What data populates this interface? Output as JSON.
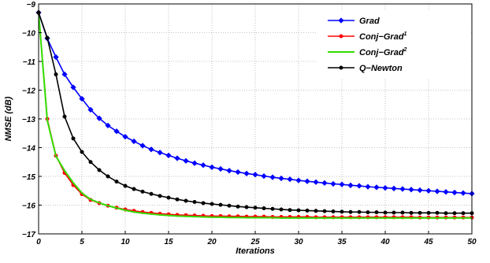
{
  "chart_data": {
    "type": "line",
    "title": "",
    "xlabel": "Iterations",
    "ylabel": "NMSE  (dB)",
    "xlim": [
      0,
      50
    ],
    "ylim": [
      -17,
      -9
    ],
    "grid": true,
    "legend_position": "top-right",
    "x_ticks": [
      "0",
      "5",
      "10",
      "15",
      "20",
      "25",
      "30",
      "35",
      "40",
      "45",
      "50"
    ],
    "y_ticks": [
      "−9",
      "−10",
      "−11",
      "−12",
      "−13",
      "−14",
      "−15",
      "−16",
      "−17"
    ],
    "x": [
      0,
      1,
      2,
      3,
      4,
      5,
      6,
      7,
      8,
      9,
      10,
      11,
      12,
      13,
      14,
      15,
      16,
      17,
      18,
      19,
      20,
      21,
      22,
      23,
      24,
      25,
      26,
      27,
      28,
      29,
      30,
      31,
      32,
      33,
      34,
      35,
      36,
      37,
      38,
      39,
      40,
      41,
      42,
      43,
      44,
      45,
      46,
      47,
      48,
      49,
      50
    ],
    "series": [
      {
        "name": "Grad",
        "name_main": "Grad",
        "name_sup": "",
        "color": "#0000ff",
        "marker": "diamond",
        "values": [
          -9.3,
          -10.2,
          -10.85,
          -11.45,
          -11.9,
          -12.3,
          -12.68,
          -12.98,
          -13.23,
          -13.43,
          -13.62,
          -13.78,
          -13.93,
          -14.06,
          -14.17,
          -14.27,
          -14.37,
          -14.46,
          -14.54,
          -14.61,
          -14.68,
          -14.74,
          -14.8,
          -14.85,
          -14.9,
          -14.94,
          -14.99,
          -15.03,
          -15.07,
          -15.1,
          -15.14,
          -15.17,
          -15.2,
          -15.23,
          -15.26,
          -15.28,
          -15.31,
          -15.33,
          -15.36,
          -15.38,
          -15.4,
          -15.42,
          -15.44,
          -15.46,
          -15.48,
          -15.5,
          -15.52,
          -15.54,
          -15.56,
          -15.58,
          -15.6
        ]
      },
      {
        "name": "Conj−Grad1",
        "name_main": "Conj−Grad",
        "name_sup": "1",
        "color": "#ff0000",
        "marker": "circle",
        "values": [
          -9.3,
          -13.0,
          -14.28,
          -14.88,
          -15.3,
          -15.62,
          -15.82,
          -15.93,
          -16.02,
          -16.09,
          -16.15,
          -16.2,
          -16.24,
          -16.27,
          -16.3,
          -16.32,
          -16.34,
          -16.35,
          -16.36,
          -16.37,
          -16.38,
          -16.38,
          -16.39,
          -16.39,
          -16.4,
          -16.4,
          -16.4,
          -16.41,
          -16.41,
          -16.41,
          -16.41,
          -16.41,
          -16.42,
          -16.42,
          -16.42,
          -16.42,
          -16.42,
          -16.42,
          -16.42,
          -16.42,
          -16.42,
          -16.42,
          -16.42,
          -16.42,
          -16.43,
          -16.43,
          -16.43,
          -16.43,
          -16.43,
          -16.43,
          -16.43
        ]
      },
      {
        "name": "Conj−Grad2",
        "name_main": "Conj−Grad",
        "name_sup": "2",
        "color": "#33dd00",
        "marker": "none",
        "values": [
          -9.3,
          -13.05,
          -14.3,
          -14.8,
          -15.22,
          -15.58,
          -15.8,
          -15.92,
          -16.02,
          -16.1,
          -16.18,
          -16.24,
          -16.28,
          -16.31,
          -16.34,
          -16.36,
          -16.38,
          -16.39,
          -16.4,
          -16.41,
          -16.42,
          -16.42,
          -16.43,
          -16.43,
          -16.44,
          -16.44,
          -16.44,
          -16.44,
          -16.45,
          -16.45,
          -16.45,
          -16.45,
          -16.45,
          -16.45,
          -16.45,
          -16.45,
          -16.45,
          -16.45,
          -16.45,
          -16.45,
          -16.45,
          -16.45,
          -16.45,
          -16.45,
          -16.45,
          -16.45,
          -16.45,
          -16.45,
          -16.45,
          -16.45,
          -16.45
        ]
      },
      {
        "name": "Q−Newton",
        "name_main": "Q−Newton",
        "name_sup": "",
        "color": "#000000",
        "marker": "circle",
        "values": [
          -9.3,
          -10.18,
          -11.45,
          -12.92,
          -13.68,
          -14.15,
          -14.5,
          -14.78,
          -15.0,
          -15.18,
          -15.33,
          -15.44,
          -15.53,
          -15.61,
          -15.68,
          -15.74,
          -15.8,
          -15.85,
          -15.89,
          -15.93,
          -15.96,
          -15.99,
          -16.02,
          -16.05,
          -16.07,
          -16.09,
          -16.11,
          -16.13,
          -16.15,
          -16.17,
          -16.18,
          -16.19,
          -16.2,
          -16.21,
          -16.22,
          -16.23,
          -16.24,
          -16.24,
          -16.25,
          -16.25,
          -16.26,
          -16.26,
          -16.26,
          -16.27,
          -16.27,
          -16.27,
          -16.27,
          -16.28,
          -16.28,
          -16.28,
          -16.28
        ]
      }
    ]
  }
}
